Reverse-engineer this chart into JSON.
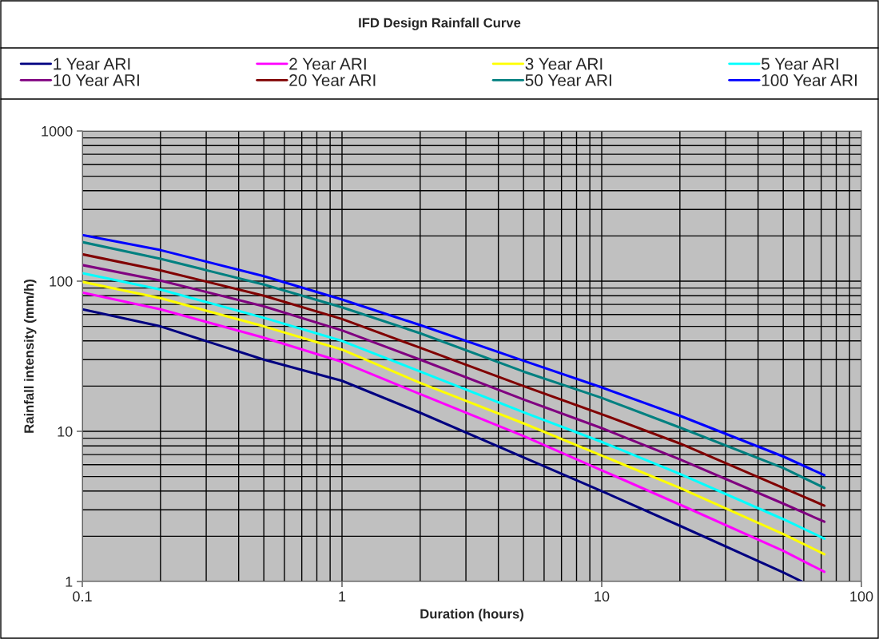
{
  "chart_data": {
    "type": "line",
    "title": "IFD Design Rainfall Curve",
    "xlabel": "Duration (hours)",
    "ylabel": "Rainfall intensity (mm/h)",
    "x": [
      0.1,
      0.2,
      0.5,
      1,
      2,
      5,
      10,
      20,
      50,
      72
    ],
    "series": [
      {
        "name": "1 Year ARI",
        "color": "#000080",
        "x": [
          0.1,
          0.2,
          0.5,
          1,
          2,
          5,
          10,
          20,
          50,
          59
        ],
        "values": [
          65,
          50,
          30,
          21.7,
          13.3,
          6.7,
          4.0,
          2.35,
          1.15,
          1.0
        ]
      },
      {
        "name": "2 Year ARI",
        "color": "#ff00ff",
        "values": [
          84,
          65,
          42,
          29,
          17.7,
          9.3,
          5.5,
          3.25,
          1.6,
          1.16
        ]
      },
      {
        "name": "3 Year ARI",
        "color": "#ffff00",
        "values": [
          99,
          77,
          50,
          35,
          21,
          11.3,
          6.9,
          4.2,
          2.07,
          1.52
        ]
      },
      {
        "name": "5 Year ARI",
        "color": "#00ffff",
        "values": [
          113,
          88,
          57,
          40,
          25,
          13.4,
          8.5,
          5.2,
          2.6,
          1.93
        ]
      },
      {
        "name": "10 Year ARI",
        "color": "#800080",
        "values": [
          128,
          101,
          68,
          47,
          30,
          16.3,
          10.5,
          6.5,
          3.3,
          2.5
        ]
      },
      {
        "name": "20 Year ARI",
        "color": "#800000",
        "values": [
          151,
          118,
          80,
          56,
          36,
          20,
          13,
          8.3,
          4.2,
          3.2
        ]
      },
      {
        "name": "50 Year ARI",
        "color": "#008080",
        "values": [
          182,
          141,
          95,
          67,
          45,
          25,
          16.7,
          10.6,
          5.7,
          4.2
        ]
      },
      {
        "name": "100 Year ARI",
        "color": "#0000ff",
        "values": [
          203,
          161,
          108,
          75.5,
          51,
          29.5,
          19.6,
          12.7,
          6.8,
          5.1
        ]
      }
    ],
    "log": "xy",
    "xlim": [
      0.1,
      100
    ],
    "ylim": [
      1,
      1000
    ],
    "xticks": [
      0.1,
      1,
      10,
      100
    ],
    "yticks": [
      1,
      10,
      100,
      1000
    ],
    "grid": true,
    "legend": "top",
    "marker": "none",
    "line_style": "solid"
  }
}
